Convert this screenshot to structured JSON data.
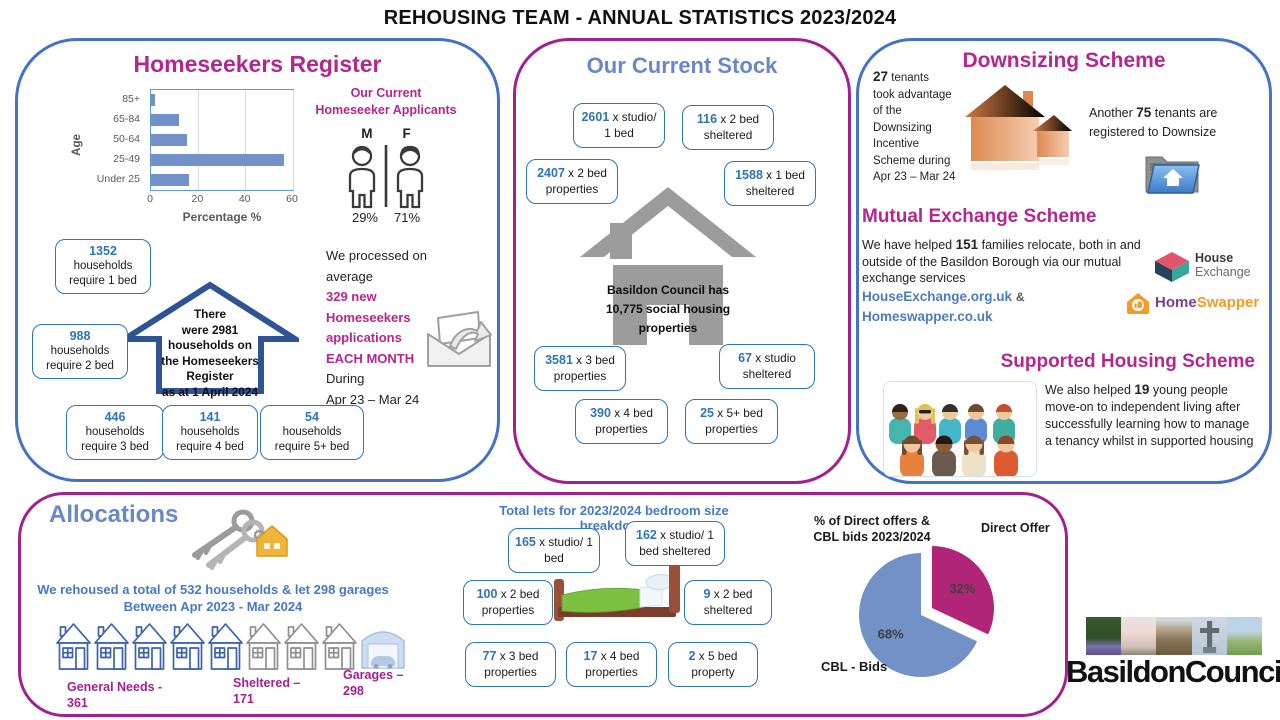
{
  "title": "REHOUSING TEAM - ANNUAL STATISTICS 2023/2024",
  "chart_data": [
    {
      "type": "bar",
      "orientation": "horizontal",
      "title": "Homeseekers Register by age",
      "categories": [
        "85+",
        "65-84",
        "50-64",
        "25-49",
        "Under 25"
      ],
      "values": [
        1.5,
        12,
        15,
        56,
        16
      ],
      "xlabel": "Percentage %",
      "ylabel": "Age",
      "xlim": [
        0,
        60
      ],
      "xticks": [
        0,
        20,
        40,
        60
      ],
      "bar_color": "#7291c8",
      "grid": true
    },
    {
      "type": "pie",
      "title": "% of Direct offers & CBL bids 2023/2024",
      "labels": [
        "Direct Offer",
        "CBL - Bids"
      ],
      "values": [
        32,
        68
      ],
      "value_labels": [
        "32%",
        "68%"
      ],
      "colors": [
        "#b02578",
        "#7191c7"
      ],
      "exploded": [
        true,
        false
      ],
      "start_angle_deg": 0
    }
  ],
  "homeseekers": {
    "heading": "Homeseekers Register",
    "applicants": {
      "title_l1": "Our Current",
      "title_l2": "Homeseeker Applicants",
      "male": "M",
      "female": "F",
      "male_pct": "29%",
      "female_pct": "71%"
    },
    "boxes": [
      {
        "number": "1352",
        "l1": "households",
        "l2": "require 1 bed"
      },
      {
        "number": "988",
        "l1": "households",
        "l2": "require 2 bed"
      },
      {
        "number": "446",
        "l1": "households",
        "l2": "require 3 bed"
      },
      {
        "number": "141",
        "l1": "households",
        "l2": "require 4 bed"
      },
      {
        "number": "54",
        "l1": "households",
        "l2": "require 5+ bed"
      }
    ],
    "arrow": {
      "l1": "There",
      "l2": "were 2981",
      "l3": "households on",
      "l4": "the Homeseekers",
      "l5": "Register",
      "l6": "as at 1 April 2024"
    },
    "processed": {
      "l1": "We processed on",
      "l2": "average",
      "l3": "329 new Homeseekers",
      "l4": "applications",
      "l5": "EACH MONTH",
      "l6": "During",
      "l7": "Apr 23 – Mar 24"
    }
  },
  "stock": {
    "heading": "Our Current Stock",
    "house": {
      "l1": "Basildon Council has",
      "l2": "10,775 social housing",
      "l3": "properties"
    },
    "boxes": [
      {
        "number": "2601",
        "rest": " x studio/ 1 bed"
      },
      {
        "number": "116",
        "rest": " x 2 bed sheltered"
      },
      {
        "number": "2407",
        "rest": " x 2 bed properties"
      },
      {
        "number": "1588",
        "rest": " x 1 bed sheltered"
      },
      {
        "number": "3581",
        "rest": " x 3 bed properties"
      },
      {
        "number": "67",
        "rest": " x studio sheltered"
      },
      {
        "number": "390",
        "rest": " x 4 bed properties"
      },
      {
        "number": "25",
        "rest": " x 5+ bed properties"
      }
    ]
  },
  "downsizing": {
    "heading": "Downsizing Scheme",
    "num": "27",
    "after_num": " tenants",
    "l2": "took advantage",
    "l3": "of the",
    "l4": "Downsizing",
    "l5": "Incentive",
    "l6": "Scheme during",
    "l7": "Apr 23 – Mar 24",
    "another_pre": "Another ",
    "another_num": "75",
    "another_post": " tenants are",
    "another_l2": "registered to Downsize"
  },
  "mutual": {
    "heading": "Mutual Exchange Scheme",
    "pre": "We have helped ",
    "num": "151",
    "post": " families relocate, both in and outside of the Basildon Borough via our mutual exchange services",
    "link1": "HouseExchange.org.uk",
    "amp": "&",
    "link2": "Homeswapper.co.uk",
    "he_l1": "House",
    "he_l2": "Exchange",
    "hs_l1": "Home",
    "hs_l2": "Swapper"
  },
  "supported": {
    "heading": "Supported Housing Scheme",
    "pre": "We also helped ",
    "num": "19",
    "post": " young people move-on to independent living after successfully learning how to manage a tenancy whilst in supported housing"
  },
  "allocations": {
    "heading": "Allocations",
    "summary_l1": "We rehoused a total of 532 households & let 298 garages",
    "summary_l2": "Between Apr 2023 - Mar 2024",
    "general_l1": "General Needs -",
    "general_l2": "361",
    "sheltered_l1": "Sheltered –",
    "sheltered_l2": "171",
    "garages_l1": "Garages –",
    "garages_l2": "298",
    "lets_title": "Total lets for 2023/2024 bedroom size breakdown",
    "lets_boxes": [
      {
        "number": "165",
        "rest": " x studio/ 1 bed"
      },
      {
        "number": "162",
        "rest": " x studio/ 1 bed sheltered"
      },
      {
        "number": "100",
        "rest": " x 2 bed properties"
      },
      {
        "number": "9",
        "rest": " x 2 bed sheltered"
      },
      {
        "number": "77",
        "rest": " x 3 bed properties"
      },
      {
        "number": "17",
        "rest": " x 4 bed properties"
      },
      {
        "number": "2",
        "rest": " x 5 bed property"
      }
    ],
    "pie_title_l1": "% of Direct offers &",
    "pie_title_l2": "CBL bids 2023/2024",
    "label_direct": "Direct Offer",
    "label_cbl": "CBL - Bids"
  },
  "logo_text": "BasildonCouncil",
  "colors": {
    "accent_blue": "#4472c4",
    "accent_magenta": "#a3218e",
    "heading_magenta": "#b5268f",
    "heading_blue": "#6a87c9",
    "stat_blue": "#2e75b6",
    "link_blue": "#4b7cc0",
    "pie_blue": "#7191c7",
    "pie_magenta": "#b02578"
  }
}
